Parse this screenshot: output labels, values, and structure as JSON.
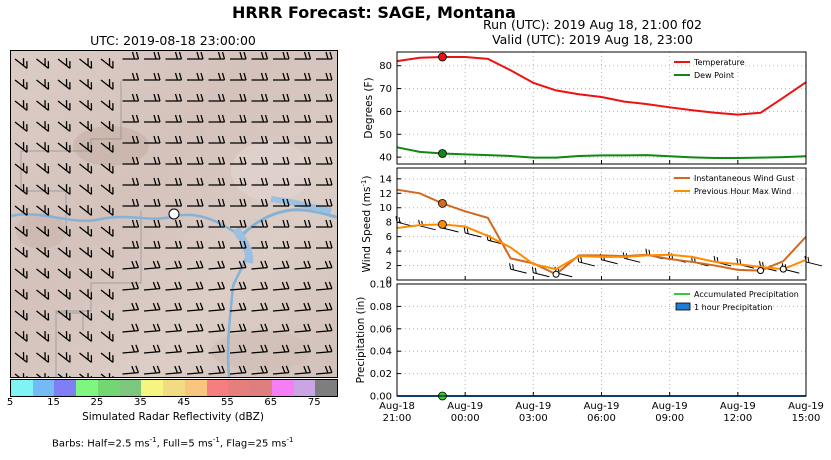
{
  "suptitle": "HRRR Forecast: SAGE, Montana",
  "run_line": "Run (UTC): 2019 Aug 18, 21:00 f02",
  "valid_line": "Valid (UTC): 2019 Aug 18, 23:00",
  "map": {
    "title": "UTC: 2019-08-18 23:00:00",
    "colorbar_label": "Simulated Radar Reflectivity (dBZ)",
    "colorbar_ticks": [
      "5",
      "15",
      "25",
      "35",
      "45",
      "55",
      "65",
      "75"
    ],
    "colorbar_colors": [
      "#7ef4f4",
      "#74bbf5",
      "#7f7ff5",
      "#7ff67f",
      "#72d672",
      "#7dc67d",
      "#f5f57f",
      "#f2dc82",
      "#f7c57e",
      "#f77e7e",
      "#e77e7e",
      "#df7e7e",
      "#f57ef5",
      "#caa5e4",
      "#7e7e7e"
    ],
    "barbs_note_prefix": "Barbs: Half=2.5 ms",
    "barbs_note_mid": ", Full=5 ms",
    "barbs_note_mid2": ", Flag=25 ms",
    "barbs_exp": "-1"
  },
  "chart_data": [
    {
      "type": "line",
      "ylabel": "Degrees (F)",
      "ylim": [
        37,
        86
      ],
      "yticks": [
        40,
        50,
        60,
        70,
        80
      ],
      "grid": true,
      "legend": "top-right",
      "x_hours_from_start": [
        0,
        1,
        2,
        3,
        4,
        5,
        6,
        7,
        8,
        9,
        10,
        11,
        12,
        13,
        14,
        15,
        16,
        17,
        18
      ],
      "series": [
        {
          "name": "Temperature",
          "color": "#ee1111",
          "values": [
            82,
            83.5,
            83.8,
            83.8,
            83,
            78,
            72.5,
            69.2,
            67.5,
            66.3,
            64.3,
            63.2,
            61.8,
            60.5,
            59.4,
            58.6,
            59.4,
            66,
            72.8
          ]
        },
        {
          "name": "Dew Point",
          "color": "#118811",
          "values": [
            44.3,
            42.3,
            41.6,
            41.2,
            40.9,
            40.5,
            39.8,
            39.8,
            40.5,
            40.8,
            40.8,
            40.9,
            40.4,
            39.9,
            39.6,
            39.6,
            39.8,
            40,
            40.4
          ]
        }
      ],
      "markers": [
        {
          "series": 0,
          "x": 2
        },
        {
          "series": 1,
          "x": 2
        }
      ]
    },
    {
      "type": "line",
      "ylabel": "Wind Speed",
      "ylabel_unit": "(ms",
      "ylabel_exp": "-1",
      "ylim": [
        0,
        15.5
      ],
      "yticks": [
        0,
        2,
        4,
        6,
        8,
        10,
        12,
        14
      ],
      "grid": true,
      "legend": "top-right",
      "x_hours_from_start": [
        0,
        1,
        2,
        3,
        4,
        5,
        6,
        7,
        8,
        9,
        10,
        11,
        12,
        13,
        14,
        15,
        16,
        17,
        18
      ],
      "series": [
        {
          "name": "Instantaneous Wind Gust",
          "color": "#d2691e",
          "values": [
            12.5,
            12,
            10.6,
            9.5,
            8.6,
            3,
            2.3,
            0.8,
            3.4,
            3.4,
            3.3,
            3.5,
            2.9,
            2.5,
            2,
            1.4,
            1.3,
            2.6,
            6
          ]
        },
        {
          "name": "Previous Hour Max Wind",
          "color": "#ff8c00",
          "values": [
            7.2,
            7.6,
            7.7,
            7.4,
            6.1,
            4.5,
            2.2,
            1.5,
            3.3,
            3.2,
            3.2,
            3.4,
            3.5,
            3.2,
            2.5,
            2.2,
            1.8,
            1.5,
            2.8
          ]
        }
      ],
      "markers": [
        {
          "series": 0,
          "x": 2
        },
        {
          "series": 1,
          "x": 2
        }
      ]
    },
    {
      "type": "area",
      "ylabel": "Precipitation (in)",
      "ylim": [
        0,
        0.1
      ],
      "yticks": [
        "0.00",
        "0.02",
        "0.04",
        "0.06",
        "0.08",
        "0.10"
      ],
      "grid": true,
      "legend": "top-right",
      "x_hours_from_start": [
        0,
        18
      ],
      "series": [
        {
          "name": "Accumulated Precipitation",
          "color": "#33cc33",
          "values": [
            0,
            0
          ]
        },
        {
          "name": "1 hour Precipitation",
          "color": "#1e7bd6",
          "values": [
            0,
            0
          ]
        }
      ],
      "markers": [
        {
          "series": 0,
          "x": 2
        }
      ]
    }
  ],
  "x_axis": {
    "tick_hours": [
      0,
      3,
      6,
      9,
      12,
      15,
      18
    ],
    "tick_top": [
      "Aug-18",
      "Aug-19",
      "Aug-19",
      "Aug-19",
      "Aug-19",
      "Aug-19",
      "Aug-19"
    ],
    "tick_bottom": [
      "21:00",
      "00:00",
      "03:00",
      "06:00",
      "09:00",
      "12:00",
      "15:00"
    ]
  }
}
